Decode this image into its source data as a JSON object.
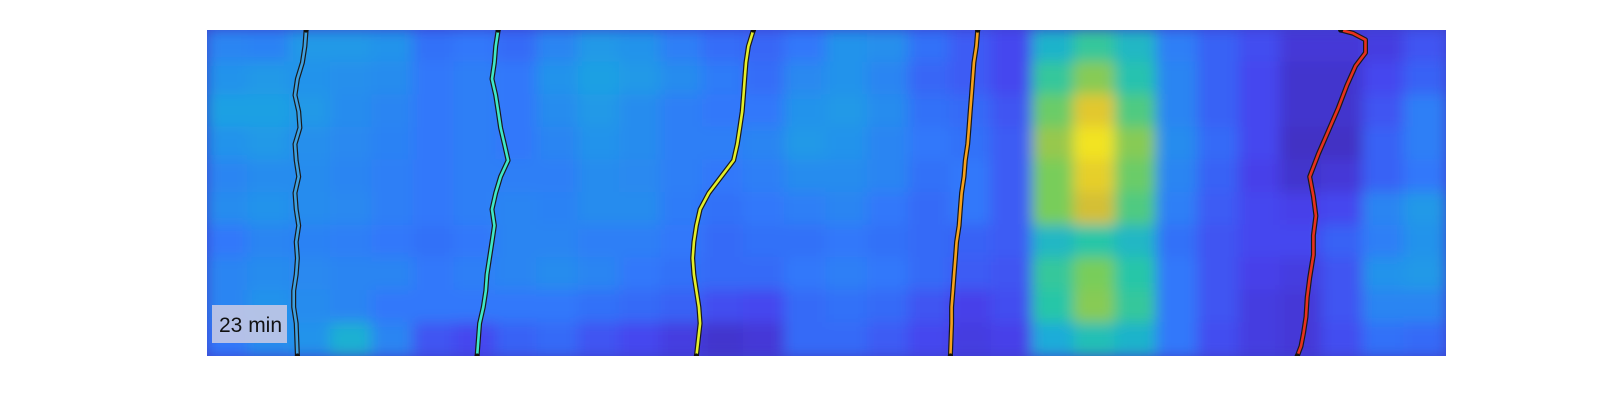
{
  "chart_data": {
    "type": "heatmap",
    "title": "",
    "xlabel": "",
    "ylabel": "",
    "grid": false,
    "colormap": "parula",
    "time_label": "23 min",
    "time_label_position": "bottom-left",
    "heatmap": {
      "rows": 10,
      "cols": 30,
      "value_range": [
        0,
        1
      ],
      "values": [
        [
          0.34,
          0.33,
          0.4,
          0.4,
          0.38,
          0.28,
          0.3,
          0.26,
          0.34,
          0.4,
          0.38,
          0.32,
          0.27,
          0.25,
          0.3,
          0.38,
          0.37,
          0.28,
          0.22,
          0.16,
          0.5,
          0.62,
          0.52,
          0.32,
          0.24,
          0.18,
          0.1,
          0.1,
          0.12,
          0.2
        ],
        [
          0.38,
          0.4,
          0.38,
          0.37,
          0.36,
          0.3,
          0.32,
          0.3,
          0.38,
          0.42,
          0.4,
          0.36,
          0.31,
          0.27,
          0.35,
          0.38,
          0.34,
          0.25,
          0.22,
          0.16,
          0.62,
          0.74,
          0.58,
          0.34,
          0.24,
          0.16,
          0.08,
          0.08,
          0.16,
          0.24
        ],
        [
          0.42,
          0.42,
          0.4,
          0.36,
          0.34,
          0.3,
          0.32,
          0.3,
          0.36,
          0.4,
          0.36,
          0.32,
          0.3,
          0.3,
          0.38,
          0.4,
          0.36,
          0.28,
          0.26,
          0.2,
          0.7,
          0.88,
          0.66,
          0.34,
          0.24,
          0.16,
          0.08,
          0.08,
          0.2,
          0.32
        ],
        [
          0.38,
          0.4,
          0.37,
          0.35,
          0.33,
          0.3,
          0.32,
          0.3,
          0.34,
          0.38,
          0.36,
          0.32,
          0.32,
          0.34,
          0.4,
          0.38,
          0.34,
          0.3,
          0.28,
          0.22,
          0.76,
          0.96,
          0.74,
          0.36,
          0.26,
          0.16,
          0.06,
          0.06,
          0.24,
          0.32
        ],
        [
          0.34,
          0.36,
          0.36,
          0.34,
          0.32,
          0.3,
          0.32,
          0.32,
          0.32,
          0.36,
          0.35,
          0.32,
          0.3,
          0.32,
          0.36,
          0.36,
          0.34,
          0.28,
          0.3,
          0.22,
          0.72,
          0.9,
          0.7,
          0.34,
          0.24,
          0.14,
          0.08,
          0.1,
          0.24,
          0.3
        ],
        [
          0.36,
          0.38,
          0.36,
          0.35,
          0.32,
          0.3,
          0.32,
          0.34,
          0.33,
          0.36,
          0.36,
          0.31,
          0.28,
          0.3,
          0.32,
          0.34,
          0.3,
          0.26,
          0.3,
          0.22,
          0.72,
          0.84,
          0.66,
          0.32,
          0.22,
          0.16,
          0.14,
          0.16,
          0.34,
          0.4
        ],
        [
          0.3,
          0.34,
          0.33,
          0.32,
          0.3,
          0.28,
          0.3,
          0.34,
          0.34,
          0.32,
          0.32,
          0.3,
          0.26,
          0.28,
          0.28,
          0.3,
          0.28,
          0.26,
          0.24,
          0.22,
          0.52,
          0.6,
          0.52,
          0.28,
          0.2,
          0.16,
          0.16,
          0.24,
          0.32,
          0.38
        ],
        [
          0.34,
          0.36,
          0.35,
          0.34,
          0.34,
          0.3,
          0.32,
          0.34,
          0.36,
          0.34,
          0.3,
          0.28,
          0.26,
          0.26,
          0.3,
          0.32,
          0.3,
          0.26,
          0.22,
          0.2,
          0.62,
          0.72,
          0.6,
          0.3,
          0.2,
          0.14,
          0.12,
          0.2,
          0.38,
          0.4
        ],
        [
          0.34,
          0.38,
          0.36,
          0.34,
          0.3,
          0.3,
          0.3,
          0.3,
          0.3,
          0.28,
          0.26,
          0.24,
          0.18,
          0.16,
          0.26,
          0.28,
          0.26,
          0.2,
          0.14,
          0.18,
          0.6,
          0.74,
          0.62,
          0.3,
          0.2,
          0.12,
          0.1,
          0.2,
          0.34,
          0.34
        ],
        [
          0.3,
          0.36,
          0.38,
          0.48,
          0.34,
          0.2,
          0.16,
          0.24,
          0.26,
          0.2,
          0.16,
          0.12,
          0.08,
          0.1,
          0.26,
          0.26,
          0.22,
          0.16,
          0.12,
          0.14,
          0.46,
          0.56,
          0.5,
          0.3,
          0.18,
          0.12,
          0.1,
          0.18,
          0.28,
          0.26
        ]
      ]
    },
    "series": [
      {
        "color": "#3d9fe0",
        "x": [
          0.08,
          0.079,
          0.077,
          0.073,
          0.071,
          0.074,
          0.075,
          0.071,
          0.072,
          0.074,
          0.071,
          0.072,
          0.074,
          0.072,
          0.073,
          0.072,
          0.07,
          0.07,
          0.072,
          0.073
        ],
        "y": [
          0.0,
          0.05,
          0.1,
          0.15,
          0.2,
          0.25,
          0.3,
          0.35,
          0.4,
          0.45,
          0.5,
          0.55,
          0.6,
          0.65,
          0.7,
          0.75,
          0.8,
          0.85,
          0.9,
          1.0
        ]
      },
      {
        "color": "#3ee8c8",
        "x": [
          0.235,
          0.233,
          0.232,
          0.23,
          0.233,
          0.235,
          0.237,
          0.24,
          0.243,
          0.237,
          0.233,
          0.23,
          0.232,
          0.23,
          0.228,
          0.226,
          0.225,
          0.223,
          0.22,
          0.218
        ],
        "y": [
          0.0,
          0.05,
          0.1,
          0.15,
          0.2,
          0.25,
          0.3,
          0.35,
          0.4,
          0.45,
          0.5,
          0.55,
          0.6,
          0.65,
          0.7,
          0.75,
          0.8,
          0.85,
          0.9,
          1.0
        ]
      },
      {
        "color": "#e4f02a",
        "x": [
          0.441,
          0.437,
          0.435,
          0.434,
          0.433,
          0.432,
          0.43,
          0.428,
          0.425,
          0.415,
          0.405,
          0.398,
          0.395,
          0.393,
          0.392,
          0.393,
          0.395,
          0.397,
          0.398,
          0.395
        ],
        "y": [
          0.0,
          0.05,
          0.1,
          0.15,
          0.2,
          0.25,
          0.3,
          0.35,
          0.4,
          0.45,
          0.5,
          0.55,
          0.6,
          0.65,
          0.7,
          0.75,
          0.8,
          0.85,
          0.9,
          1.0
        ]
      },
      {
        "color": "#f7a21c",
        "x": [
          0.622,
          0.621,
          0.619,
          0.618,
          0.617,
          0.616,
          0.615,
          0.614,
          0.612,
          0.611,
          0.609,
          0.608,
          0.607,
          0.605,
          0.604,
          0.603,
          0.602,
          0.601,
          0.601,
          0.6
        ],
        "y": [
          0.0,
          0.05,
          0.1,
          0.15,
          0.2,
          0.25,
          0.3,
          0.35,
          0.4,
          0.45,
          0.5,
          0.55,
          0.6,
          0.65,
          0.7,
          0.75,
          0.8,
          0.85,
          0.9,
          1.0
        ]
      },
      {
        "color": "#e8311e",
        "x": [
          0.915,
          0.925,
          0.935,
          0.935,
          0.927,
          0.92,
          0.913,
          0.905,
          0.897,
          0.89,
          0.893,
          0.895,
          0.893,
          0.893,
          0.89,
          0.888,
          0.887,
          0.885,
          0.883,
          0.88
        ],
        "y": [
          0.0,
          0.01,
          0.03,
          0.07,
          0.11,
          0.17,
          0.24,
          0.31,
          0.38,
          0.45,
          0.51,
          0.57,
          0.63,
          0.69,
          0.76,
          0.82,
          0.88,
          0.93,
          0.97,
          1.0
        ]
      }
    ]
  }
}
